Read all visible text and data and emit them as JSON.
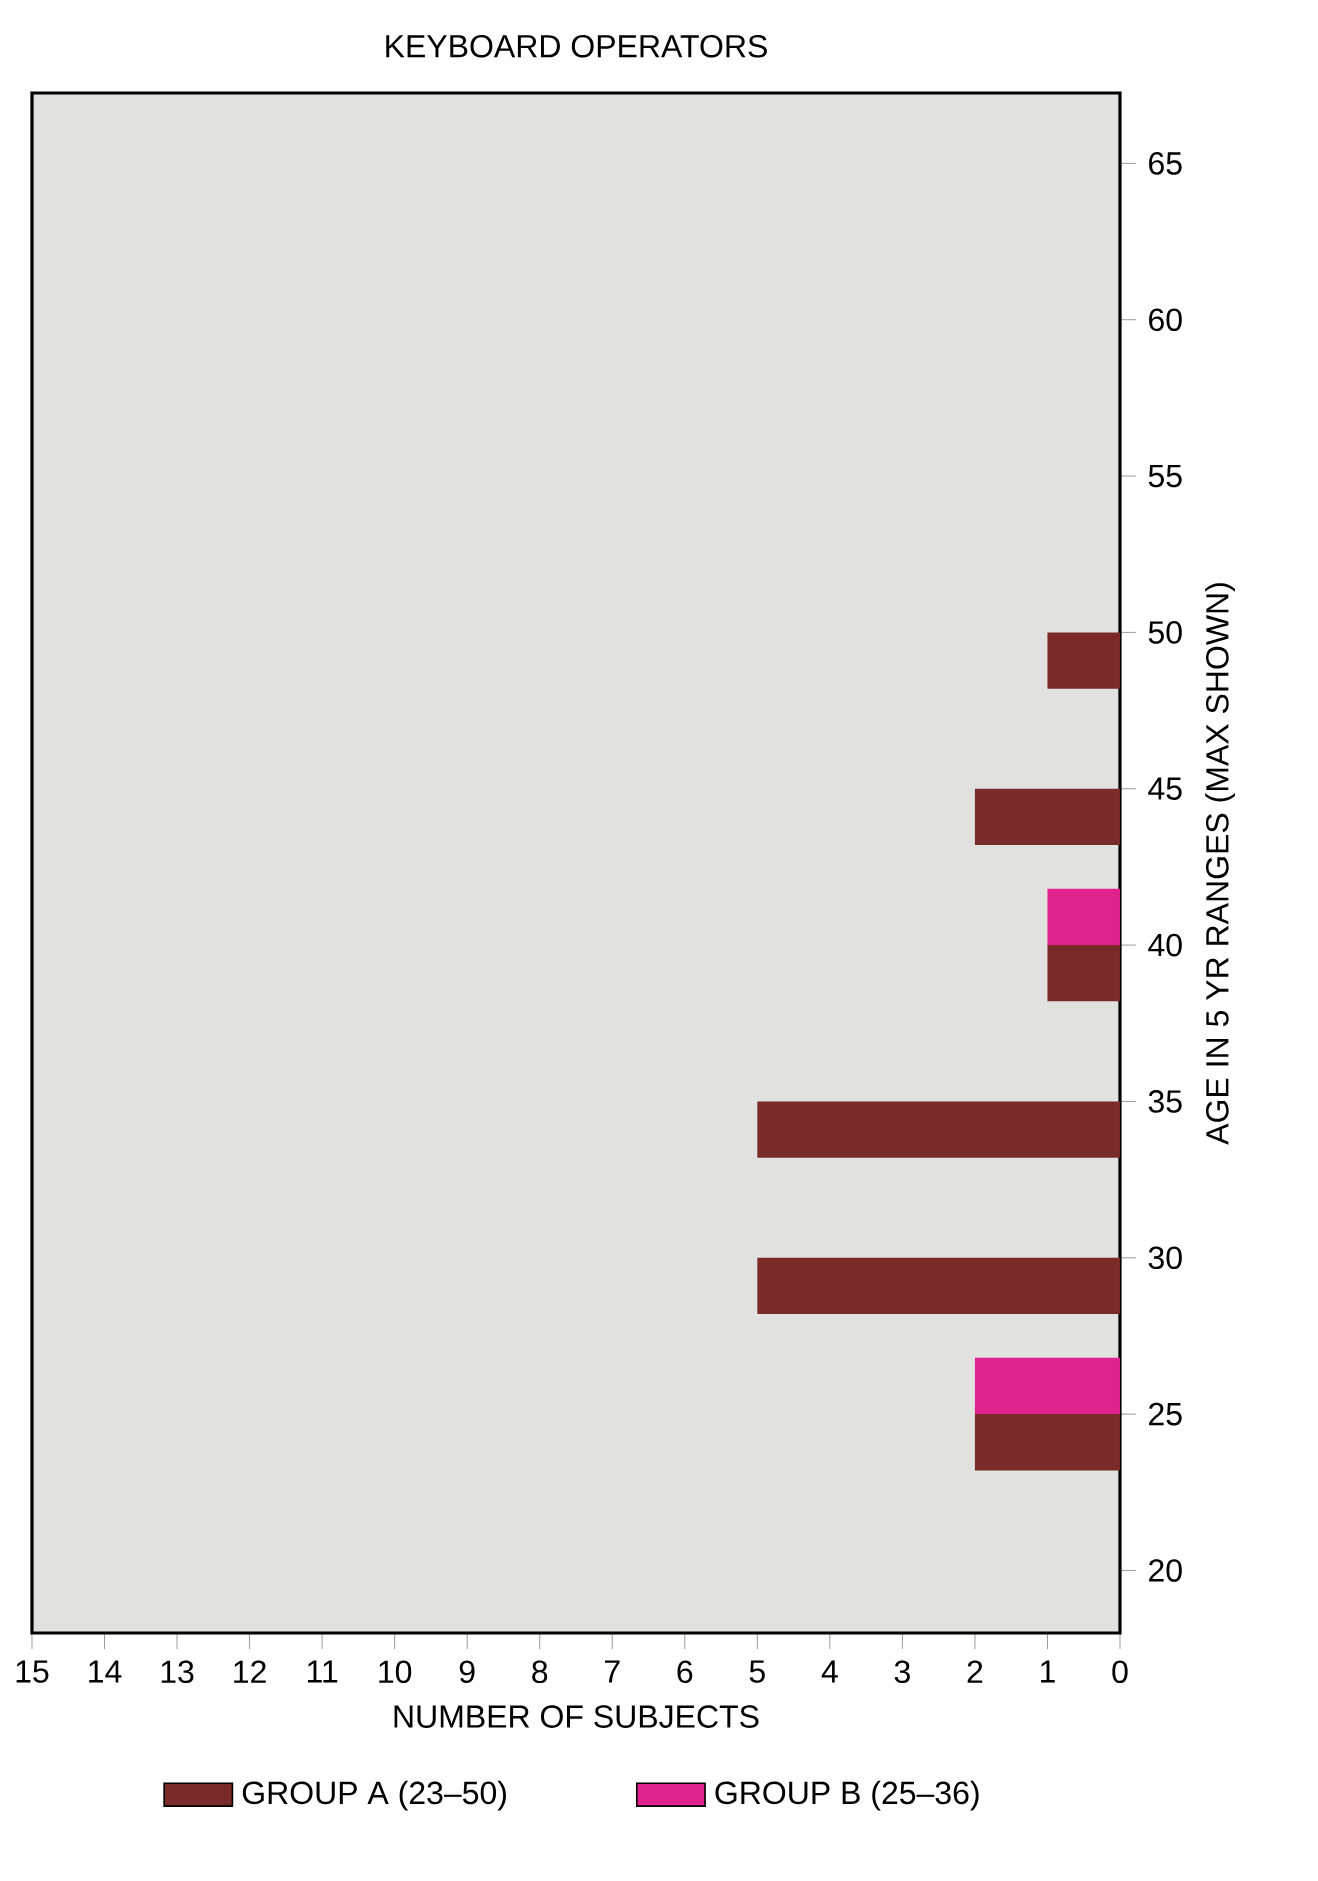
{
  "chart_data": {
    "type": "bar",
    "orientation": "horizontal",
    "title": "KEYBOARD OPERATORS",
    "xlabel": "NUMBER OF SUBJECTS",
    "ylabel": "AGE IN 5 YR RANGES (MAX SHOWN)",
    "categories": [
      "65",
      "60",
      "55",
      "50",
      "45",
      "40",
      "35",
      "30",
      "25",
      "20"
    ],
    "series": [
      {
        "name": "GROUP A (23–50)",
        "color": "#7a2a28",
        "values": [
          0,
          0,
          0,
          1,
          2,
          1,
          5,
          5,
          2,
          0
        ]
      },
      {
        "name": "GROUP B (25–36)",
        "color": "#e0228f",
        "values": [
          0,
          0,
          0,
          0,
          0,
          1,
          0,
          0,
          2,
          0
        ]
      }
    ],
    "xlim": [
      15,
      0
    ],
    "xticks": [
      0,
      1,
      2,
      3,
      4,
      5,
      6,
      7,
      8,
      9,
      10,
      11,
      12,
      13,
      14,
      15
    ],
    "grid": false,
    "legend": "bottom"
  }
}
